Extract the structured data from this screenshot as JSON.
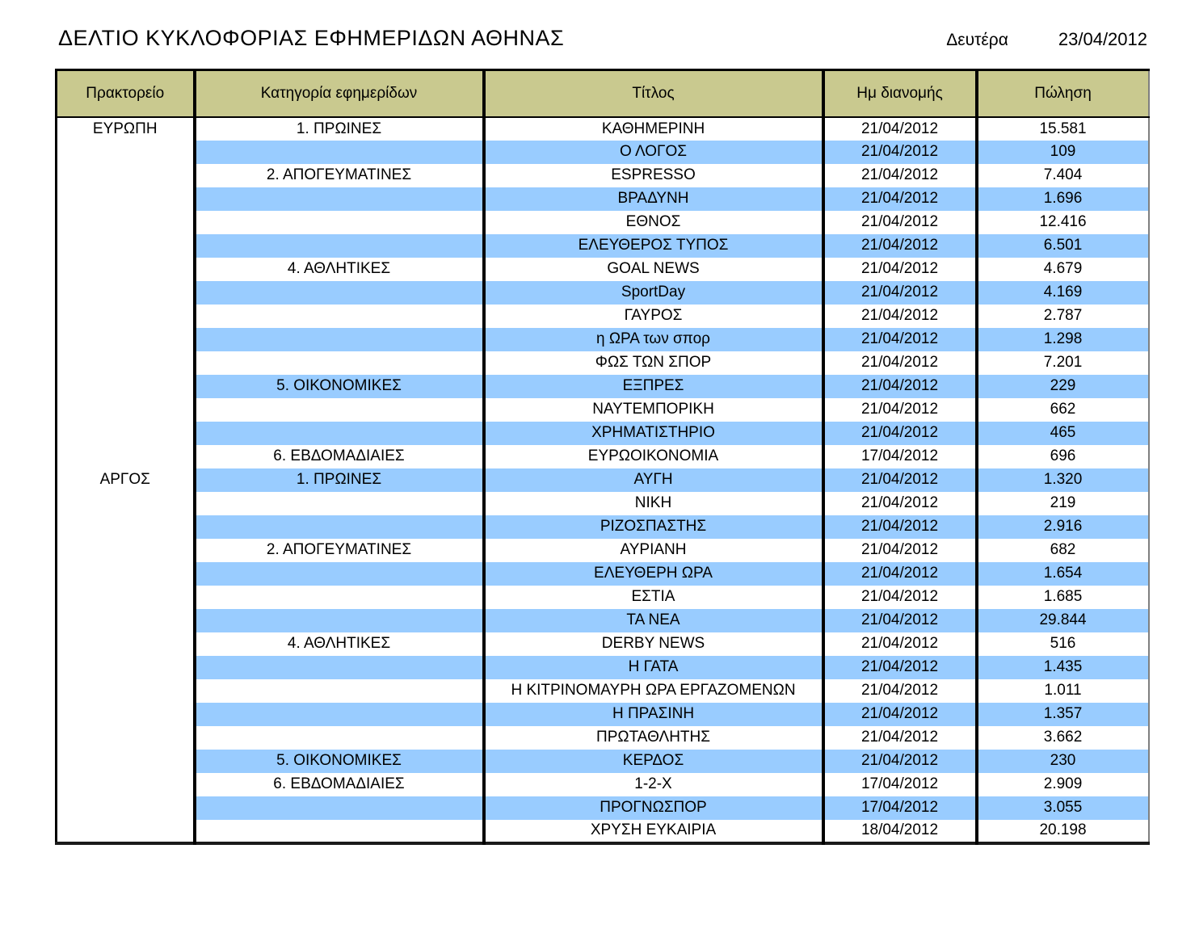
{
  "page": {
    "title": "ΔΕΛΤΙΟ ΚΥΚΛΟΦΟΡΙΑΣ ΕΦΗΜΕΡΙΔΩΝ ΑΘΗΝΑΣ",
    "day": "Δευτέρα",
    "date": "23/04/2012"
  },
  "colors": {
    "header_bg": "#c9c98f",
    "stripe_blue": "#99ccff",
    "border_dark": "#000000",
    "text": "#000000"
  },
  "table": {
    "headers": [
      "Πρακτορείο",
      "Κατηγορία εφημερίδων",
      "Τίτλος",
      "Ημ διανομής",
      "Πώληση"
    ],
    "rows": [
      {
        "agency": "ΕΥΡΩΠΗ",
        "category": "1. ΠΡΩΙΝΕΣ",
        "title": "ΚΑΘΗΜΕΡΙΝΗ",
        "dist_date": "21/04/2012",
        "sales": "15.581"
      },
      {
        "agency": "",
        "category": "",
        "title": "Ο ΛΟΓΟΣ",
        "dist_date": "21/04/2012",
        "sales": "109"
      },
      {
        "agency": "",
        "category": "2. ΑΠΟΓΕΥΜΑΤΙΝΕΣ",
        "title": "ESPRESSO",
        "dist_date": "21/04/2012",
        "sales": "7.404"
      },
      {
        "agency": "",
        "category": "",
        "title": "ΒΡΑΔΥΝΗ",
        "dist_date": "21/04/2012",
        "sales": "1.696"
      },
      {
        "agency": "",
        "category": "",
        "title": "ΕΘΝΟΣ",
        "dist_date": "21/04/2012",
        "sales": "12.416"
      },
      {
        "agency": "",
        "category": "",
        "title": "ΕΛΕΥΘΕΡΟΣ ΤΥΠΟΣ",
        "dist_date": "21/04/2012",
        "sales": "6.501"
      },
      {
        "agency": "",
        "category": "4. ΑΘΛΗΤΙΚΕΣ",
        "title": "GOAL NEWS",
        "dist_date": "21/04/2012",
        "sales": "4.679"
      },
      {
        "agency": "",
        "category": "",
        "title": "SportDay",
        "dist_date": "21/04/2012",
        "sales": "4.169"
      },
      {
        "agency": "",
        "category": "",
        "title": "ΓΑΥΡΟΣ",
        "dist_date": "21/04/2012",
        "sales": "2.787"
      },
      {
        "agency": "",
        "category": "",
        "title": "η ΩΡΑ των σπορ",
        "dist_date": "21/04/2012",
        "sales": "1.298"
      },
      {
        "agency": "",
        "category": "",
        "title": "ΦΩΣ ΤΩΝ ΣΠΟΡ",
        "dist_date": "21/04/2012",
        "sales": "7.201"
      },
      {
        "agency": "",
        "category": "5. ΟΙΚΟΝΟΜΙΚΕΣ",
        "title": "ΕΞΠΡΕΣ",
        "dist_date": "21/04/2012",
        "sales": "229"
      },
      {
        "agency": "",
        "category": "",
        "title": "ΝΑΥΤΕΜΠΟΡΙΚΗ",
        "dist_date": "21/04/2012",
        "sales": "662"
      },
      {
        "agency": "",
        "category": "",
        "title": "ΧΡΗΜΑΤΙΣΤΗΡΙΟ",
        "dist_date": "21/04/2012",
        "sales": "465"
      },
      {
        "agency": "",
        "category": "6. ΕΒΔΟΜΑΔΙΑΙΕΣ",
        "title": "ΕΥΡΩΟΙΚΟΝΟΜΙΑ",
        "dist_date": "17/04/2012",
        "sales": "696"
      },
      {
        "agency": "ΑΡΓΟΣ",
        "category": "1. ΠΡΩΙΝΕΣ",
        "title": "ΑΥΓΗ",
        "dist_date": "21/04/2012",
        "sales": "1.320"
      },
      {
        "agency": "",
        "category": "",
        "title": "ΝΙΚΗ",
        "dist_date": "21/04/2012",
        "sales": "219"
      },
      {
        "agency": "",
        "category": "",
        "title": "ΡΙΖΟΣΠΑΣΤΗΣ",
        "dist_date": "21/04/2012",
        "sales": "2.916"
      },
      {
        "agency": "",
        "category": "2. ΑΠΟΓΕΥΜΑΤΙΝΕΣ",
        "title": "ΑΥΡΙΑΝΗ",
        "dist_date": "21/04/2012",
        "sales": "682"
      },
      {
        "agency": "",
        "category": "",
        "title": "ΕΛΕΥΘΕΡΗ ΩΡΑ",
        "dist_date": "21/04/2012",
        "sales": "1.654"
      },
      {
        "agency": "",
        "category": "",
        "title": "ΕΣΤΙΑ",
        "dist_date": "21/04/2012",
        "sales": "1.685"
      },
      {
        "agency": "",
        "category": "",
        "title": "ΤΑ ΝΕΑ",
        "dist_date": "21/04/2012",
        "sales": "29.844"
      },
      {
        "agency": "",
        "category": "4. ΑΘΛΗΤΙΚΕΣ",
        "title": "DERBY NEWS",
        "dist_date": "21/04/2012",
        "sales": "516"
      },
      {
        "agency": "",
        "category": "",
        "title": "Η ΓΑΤΑ",
        "dist_date": "21/04/2012",
        "sales": "1.435"
      },
      {
        "agency": "",
        "category": "",
        "title": "Η ΚΙΤΡΙΝΟΜΑΥΡΗ ΩΡΑ ΕΡΓΑΖΟΜΕΝΩΝ",
        "dist_date": "21/04/2012",
        "sales": "1.011"
      },
      {
        "agency": "",
        "category": "",
        "title": "Η ΠΡΑΣΙΝΗ",
        "dist_date": "21/04/2012",
        "sales": "1.357"
      },
      {
        "agency": "",
        "category": "",
        "title": "ΠΡΩΤΑΘΛΗΤΗΣ",
        "dist_date": "21/04/2012",
        "sales": "3.662"
      },
      {
        "agency": "",
        "category": "5. ΟΙΚΟΝΟΜΙΚΕΣ",
        "title": "ΚΕΡΔΟΣ",
        "dist_date": "21/04/2012",
        "sales": "230"
      },
      {
        "agency": "",
        "category": "6. ΕΒΔΟΜΑΔΙΑΙΕΣ",
        "title": "1-2-X",
        "dist_date": "17/04/2012",
        "sales": "2.909"
      },
      {
        "agency": "",
        "category": "",
        "title": "ΠΡΟΓΝΩΣΠΟΡ",
        "dist_date": "17/04/2012",
        "sales": "3.055"
      },
      {
        "agency": "",
        "category": "",
        "title": "ΧΡΥΣΗ ΕΥΚΑΙΡΙΑ",
        "dist_date": "18/04/2012",
        "sales": "20.198"
      }
    ]
  }
}
